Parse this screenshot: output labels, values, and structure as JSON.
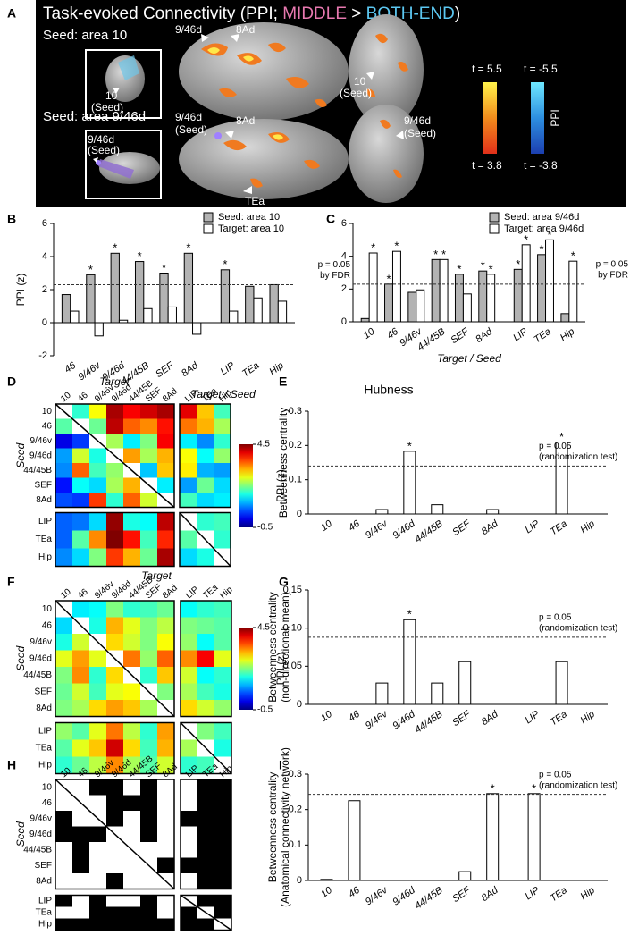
{
  "panel_a": {
    "label": "A",
    "title_parts": [
      {
        "text": "Task-evoked Connectivity (PPI; ",
        "color": "#ffffff"
      },
      {
        "text": "MIDDLE",
        "color": "#e879b0"
      },
      {
        "text": " > ",
        "color": "#ffffff"
      },
      {
        "text": "BOTH-END",
        "color": "#5cc8f2"
      },
      {
        "text": ")",
        "color": "#ffffff"
      }
    ],
    "seed_10": "Seed: area 10",
    "seed_946d": "Seed: area 9/46d",
    "annotations": [
      "10",
      "(Seed)",
      "9/46d",
      "8Ad",
      "10",
      "(Seed)",
      "9/46d",
      "(Seed)",
      "9/46d",
      "(Seed)",
      "8Ad",
      "TEa",
      "9/46d",
      "(Seed)"
    ],
    "colorbar": {
      "label": "PPI",
      "positive": [
        "t = 5.5",
        "t = 3.8"
      ],
      "negative": [
        "t = -5.5",
        "t = -3.8"
      ]
    }
  },
  "chart_data": [
    {
      "type": "bar",
      "panel": "B",
      "ylabel": [
        "PPI (z)"
      ],
      "xlabel": "Target / Seed",
      "categories": [
        "46",
        "9/46v",
        "9/46d",
        "44/45B",
        "SEF",
        "8Ad",
        "LIP",
        "TEa",
        "Hip"
      ],
      "series": [
        {
          "name": "Seed: area 10",
          "color": "#b3b3b3",
          "values": [
            1.7,
            2.9,
            4.2,
            3.7,
            3.0,
            4.2,
            3.2,
            2.2,
            2.3
          ],
          "significant": [
            false,
            true,
            true,
            true,
            true,
            true,
            true,
            false,
            false
          ]
        },
        {
          "name": "Target: area 10",
          "color": "#ffffff",
          "values": [
            0.7,
            -0.8,
            0.15,
            0.85,
            0.95,
            -0.7,
            0.7,
            1.5,
            1.3
          ],
          "significant": [
            false,
            false,
            false,
            false,
            false,
            false,
            false,
            false,
            false
          ]
        }
      ],
      "significance_label": "*",
      "threshold": 2.3,
      "threshold_label": [
        "p = 0.05",
        "by FDR"
      ],
      "ylim": [
        -2,
        6
      ],
      "yticks": [
        -2,
        0,
        2,
        4,
        6
      ]
    },
    {
      "type": "bar",
      "panel": "C",
      "xlabel": "Target / Seed",
      "categories": [
        "10",
        "46",
        "9/46v",
        "44/45B",
        "SEF",
        "8Ad",
        "LIP",
        "TEa",
        "Hip"
      ],
      "series": [
        {
          "name": "Seed: area 9/46d",
          "color": "#b3b3b3",
          "values": [
            0.2,
            2.3,
            1.8,
            3.8,
            2.9,
            3.1,
            3.2,
            4.1,
            0.5
          ],
          "significant": [
            false,
            true,
            false,
            true,
            true,
            true,
            true,
            true,
            false
          ]
        },
        {
          "name": "Target: area 9/46d",
          "color": "#ffffff",
          "values": [
            4.2,
            4.3,
            1.95,
            3.8,
            1.7,
            2.9,
            4.7,
            5.0,
            3.7
          ],
          "significant": [
            true,
            true,
            false,
            true,
            false,
            true,
            true,
            true,
            true
          ]
        }
      ],
      "significance_label": "*",
      "threshold": 2.3,
      "threshold_label": [
        "p = 0.05",
        "by FDR"
      ],
      "ylim": [
        0,
        6
      ],
      "yticks": [
        0,
        2,
        4,
        6
      ]
    },
    {
      "type": "heatmap",
      "panel": "D",
      "xlabel": "Target",
      "ylabel": "Seed",
      "colormap": "jet",
      "rows": [
        "10",
        "46",
        "9/46v",
        "9/46d",
        "44/45B",
        "SEF",
        "8Ad",
        "LIP",
        "TEa",
        "Hip"
      ],
      "columns": [
        "10",
        "46",
        "9/46v",
        "9/46d",
        "44/45B",
        "SEF",
        "8Ad",
        "LIP",
        "TEa",
        "Hip"
      ],
      "values": [
        [
          null,
          1.6,
          2.6,
          4.3,
          3.9,
          4.1,
          4.3,
          4.0,
          2.9,
          1.7
        ],
        [
          1.8,
          null,
          1.9,
          4.2,
          3.4,
          3.2,
          3.8,
          3.3,
          3.0,
          2.2
        ],
        [
          0.0,
          0.4,
          null,
          2.2,
          1.3,
          2.0,
          3.9,
          1.3,
          0.8,
          1.6
        ],
        [
          0.9,
          2.4,
          1.5,
          null,
          3.1,
          2.2,
          3.0,
          2.6,
          1.4,
          2.1
        ],
        [
          0.8,
          3.4,
          1.7,
          2.1,
          null,
          1.1,
          2.9,
          2.7,
          1.0,
          0.9
        ],
        [
          0.2,
          1.4,
          1.2,
          2.2,
          3.0,
          null,
          1.3,
          0.9,
          1.9,
          1.2
        ],
        [
          0.5,
          0.4,
          3.6,
          1.6,
          3.4,
          2.4,
          null,
          1.7,
          1.2,
          1.3
        ],
        [
          0.6,
          0.7,
          1.2,
          4.4,
          1.5,
          1.4,
          4.2,
          null,
          1.6,
          1.7
        ],
        [
          0.6,
          1.8,
          3.2,
          4.5,
          3.8,
          1.7,
          3.7,
          1.8,
          null,
          1.6
        ],
        [
          0.8,
          1.2,
          2.0,
          3.6,
          3.0,
          1.9,
          4.3,
          1.2,
          1.5,
          null
        ]
      ],
      "zlim": [
        -0.5,
        4.5
      ],
      "colorbar_ticks": [
        4.5,
        -0.5
      ],
      "colorbar_label": "PPI (z)"
    },
    {
      "type": "bar",
      "panel": "E",
      "title": "Hubness",
      "ylabel": [
        "Betweenness centrality"
      ],
      "categories": [
        "10",
        "46",
        "9/46v",
        "9/46d",
        "44/45B",
        "SEF",
        "8Ad",
        "LIP",
        "TEa",
        "Hip"
      ],
      "values": [
        0,
        0,
        0.013,
        0.183,
        0.027,
        0,
        0.013,
        0,
        0.21,
        0
      ],
      "color": "#ffffff",
      "significant": [
        false,
        false,
        false,
        true,
        false,
        false,
        false,
        false,
        true,
        false
      ],
      "significance_label": "*",
      "threshold": 0.14,
      "threshold_label": [
        "p = 0.05",
        "(randomization test)"
      ],
      "ylim": [
        0,
        0.3
      ],
      "yticks": [
        0,
        0.1,
        0.2,
        0.3
      ]
    },
    {
      "type": "heatmap",
      "panel": "F",
      "xlabel": "Target",
      "ylabel": "Seed",
      "colormap": "jet",
      "rows": [
        "10",
        "46",
        "9/46v",
        "9/46d",
        "44/45B",
        "SEF",
        "8Ad",
        "LIP",
        "TEa",
        "Hip"
      ],
      "columns": [
        "10",
        "46",
        "9/46v",
        "9/46d",
        "44/45B",
        "SEF",
        "8Ad",
        "LIP",
        "TEa",
        "Hip"
      ],
      "values": [
        [
          null,
          1.3,
          1.4,
          2.0,
          1.6,
          1.7,
          1.9,
          1.4,
          1.6,
          1.7
        ],
        [
          1.2,
          null,
          1.5,
          3.0,
          2.5,
          2.0,
          2.3,
          2.0,
          1.9,
          1.8
        ],
        [
          1.5,
          2.4,
          null,
          2.8,
          2.4,
          2.0,
          2.6,
          2.1,
          1.4,
          1.8
        ],
        [
          2.5,
          3.1,
          2.5,
          null,
          3.3,
          2.1,
          3.4,
          3.2,
          3.9,
          2.5
        ],
        [
          2.0,
          3.2,
          1.6,
          2.8,
          null,
          1.6,
          2.9,
          2.4,
          1.4,
          1.6
        ],
        [
          1.9,
          2.4,
          1.7,
          2.5,
          2.6,
          null,
          2.0,
          2.2,
          1.7,
          1.5
        ],
        [
          2.0,
          2.2,
          2.8,
          3.1,
          2.9,
          2.2,
          null,
          2.8,
          2.4,
          2.1
        ],
        [
          2.1,
          1.8,
          2.5,
          3.3,
          2.3,
          1.6,
          3.1,
          null,
          2.0,
          1.7
        ],
        [
          1.8,
          2.5,
          2.9,
          4.1,
          2.8,
          1.7,
          3.0,
          2.2,
          null,
          1.5
        ],
        [
          1.6,
          1.9,
          2.3,
          3.2,
          2.2,
          1.8,
          2.4,
          1.6,
          1.7,
          null
        ]
      ],
      "zlim": [
        -0.5,
        4.5
      ],
      "colorbar_ticks": [
        4.5,
        -0.5
      ],
      "colorbar_label": "PPI (z)"
    },
    {
      "type": "bar",
      "panel": "G",
      "ylabel": [
        "Betweenness centrality",
        "(non-directional; mean)"
      ],
      "categories": [
        "10",
        "46",
        "9/46v",
        "9/46d",
        "44/45B",
        "SEF",
        "8Ad",
        "LIP",
        "TEa",
        "Hip"
      ],
      "values": [
        0,
        0,
        0.028,
        0.111,
        0.028,
        0.056,
        0,
        0,
        0.056,
        0
      ],
      "color": "#ffffff",
      "significant": [
        false,
        false,
        false,
        true,
        false,
        false,
        false,
        false,
        false,
        false
      ],
      "significance_label": "*",
      "threshold": 0.088,
      "threshold_label": [
        "p = 0.05",
        "(randomization test)"
      ],
      "ylim": [
        0,
        0.15
      ],
      "yticks": [
        0,
        0.05,
        {
          "value": 0.1,
          "label": "0.10"
        },
        0.15
      ]
    },
    {
      "type": "heatmap",
      "panel": "H",
      "ylabel": "Seed",
      "colormap": "binary",
      "rows": [
        "10",
        "46",
        "9/46v",
        "9/46d",
        "44/45B",
        "SEF",
        "8Ad",
        "LIP",
        "TEa",
        "Hip"
      ],
      "columns": [
        "10",
        "46",
        "9/46v",
        "9/46d",
        "44/45B",
        "SEF",
        "8Ad",
        "LIP",
        "TEa",
        "Hip"
      ],
      "values": [
        [
          null,
          1,
          0,
          0,
          1,
          0,
          1,
          1,
          0,
          0
        ],
        [
          1,
          null,
          1,
          0,
          0,
          0,
          1,
          1,
          0,
          0
        ],
        [
          0,
          1,
          null,
          0,
          1,
          0,
          1,
          0,
          0,
          0
        ],
        [
          0,
          0,
          0,
          null,
          1,
          0,
          1,
          1,
          0,
          0
        ],
        [
          1,
          0,
          1,
          1,
          null,
          1,
          1,
          1,
          0,
          0
        ],
        [
          1,
          0,
          1,
          1,
          1,
          null,
          0,
          0,
          0,
          0
        ],
        [
          1,
          1,
          1,
          0,
          1,
          1,
          null,
          1,
          0,
          0
        ],
        [
          0,
          1,
          0,
          1,
          1,
          0,
          1,
          null,
          0,
          0
        ],
        [
          1,
          1,
          0,
          0,
          0,
          0,
          1,
          0,
          null,
          0
        ],
        [
          0,
          0,
          0,
          0,
          0,
          0,
          0,
          0,
          0,
          null
        ]
      ]
    },
    {
      "type": "bar",
      "panel": "I",
      "ylabel": [
        "Betweenness centrality",
        "(Anatomical connectivity network)"
      ],
      "categories": [
        "10",
        "46",
        "9/46v",
        "9/46d",
        "44/45B",
        "SEF",
        "8Ad",
        "LIP",
        "TEa",
        "Hip"
      ],
      "values": [
        0.003,
        0.225,
        0,
        0,
        0,
        0.025,
        0.245,
        0.245,
        0,
        0
      ],
      "color": "#ffffff",
      "significant": [
        false,
        false,
        false,
        false,
        false,
        false,
        true,
        true,
        false,
        false
      ],
      "significance_label": "*",
      "threshold": 0.243,
      "threshold_label": [
        "p = 0.05",
        "(randomization test)"
      ],
      "ylim": [
        0,
        0.3
      ],
      "yticks": [
        0,
        0.1,
        0.2,
        0.3
      ]
    }
  ]
}
